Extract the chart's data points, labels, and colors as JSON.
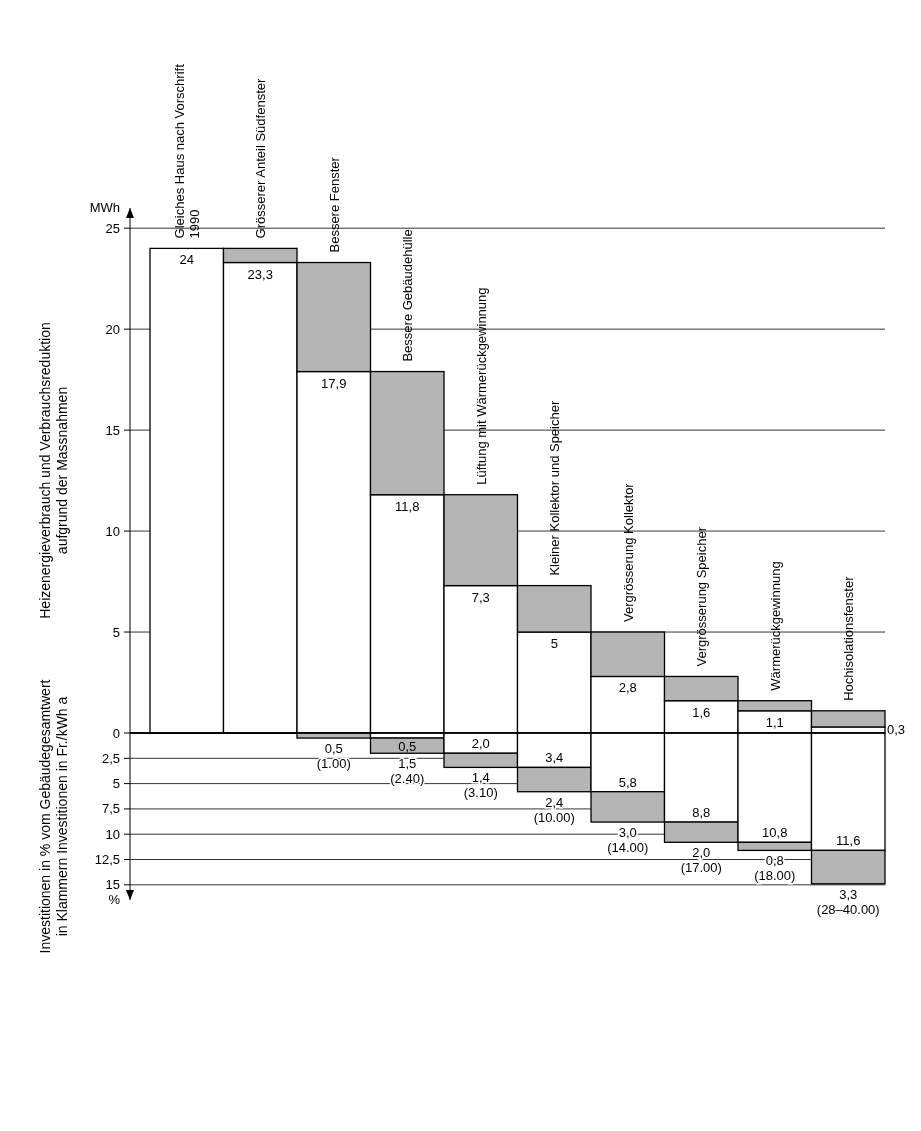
{
  "chart_data": [
    {
      "type": "bar",
      "stacked": true,
      "ylabel": "Heizenergieverbrauch und Verbrauchsreduktion\naufgrund der Massnahmen",
      "annotations": [
        "MWh"
      ],
      "categories": [
        "Gleiches Haus nach Vorschrift\n1990",
        "Grösserer  Anteil Südfenster",
        "Bessere Fenster",
        "Bessere Gebäudehülle",
        "Lüftung mit Wärmerückgewinnung",
        "Kleiner Kollektor und Speicher",
        "Vergrösserung Kollektor",
        "Vergrösserung Speicher",
        "Wärmerückgewinnung",
        "Hochisolationsfenster"
      ],
      "series": [
        {
          "color": "#ffffff",
          "values": [
            24,
            23.3,
            17.9,
            11.8,
            7.3,
            5,
            2.8,
            1.6,
            1.1,
            0.3
          ],
          "value_labels": [
            "24",
            "23,3",
            "17,9",
            "11,8",
            "7,3",
            "5",
            "2,8",
            "1,6",
            "1,1",
            "0,3"
          ]
        },
        {
          "color": "#b5b5b5",
          "values": [
            null,
            0.7,
            5.4,
            6.1,
            4.5,
            2.3,
            2.2,
            1.2,
            0.5,
            0.8
          ]
        }
      ],
      "ylim": [
        0,
        26
      ],
      "yticks": [
        0,
        5,
        10,
        15,
        20,
        25
      ],
      "grid": "y"
    },
    {
      "type": "bar",
      "stacked": true,
      "ylabel": "Investitionen in % vom Gebäudegesamtwert\nin Klammern Investitionen in Fr./kWh a",
      "annotations": [
        "%"
      ],
      "tick_labels": "y",
      "categories": [
        null,
        null,
        null,
        null,
        null,
        null,
        null,
        null,
        null,
        null
      ],
      "series": [
        {
          "color": "#ffffff",
          "values": [
            null,
            null,
            null,
            0.5,
            2.0,
            3.4,
            5.8,
            8.8,
            10.8,
            11.6
          ],
          "value_labels": [
            null,
            null,
            null,
            "0,5",
            "2,0",
            "3,4",
            "5,8",
            "8,8",
            "10,8",
            "11,6"
          ]
        },
        {
          "color": "#b5b5b5",
          "values": [
            null,
            null,
            0.5,
            1.5,
            1.4,
            2.4,
            3.0,
            2.0,
            0.8,
            3.3
          ],
          "value_labels": [
            null,
            null,
            "0,5\n(1.00)",
            "1,5\n(2.40)",
            "1,4\n(3.10)",
            "2,4\n(10.00)",
            "3,0\n(14.00)",
            "2,0\n(17.00)",
            "0,8\n(18.00)",
            "3,3\n(28–40.00)"
          ]
        }
      ],
      "ylim": [
        16.5,
        0
      ],
      "yticks": [
        {
          "value": 2.5,
          "label": "2,5"
        },
        5,
        {
          "value": 7.5,
          "label": "7,5"
        },
        10,
        {
          "value": 12.5,
          "label": "12,5"
        },
        15
      ],
      "grid": "y"
    }
  ]
}
